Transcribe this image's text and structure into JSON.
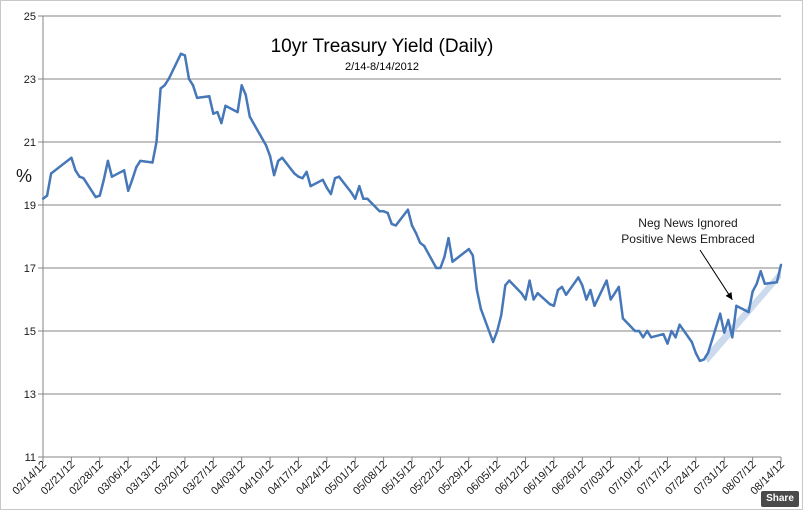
{
  "share_label": "Share",
  "colors": {
    "line": "#4677b8",
    "band": "#c6d6ec",
    "grid": "#868686",
    "axis": "#868686",
    "text": "#1a1a1a"
  },
  "chart_data": {
    "type": "line",
    "title": "10yr Treasury Yield (Daily)",
    "subtitle": "2/14-8/14/2012",
    "ylabel": "%",
    "xlabel": "",
    "ylim": [
      11,
      25
    ],
    "yticks": [
      11,
      13,
      15,
      17,
      19,
      21,
      23,
      25
    ],
    "grid": true,
    "legend": "none",
    "xticks": [
      "02/14/12",
      "02/21/12",
      "02/28/12",
      "03/06/12",
      "03/13/12",
      "03/20/12",
      "03/27/12",
      "04/03/12",
      "04/10/12",
      "04/17/12",
      "04/24/12",
      "05/01/12",
      "05/08/12",
      "05/15/12",
      "05/22/12",
      "05/29/12",
      "06/05/12",
      "06/12/12",
      "06/19/12",
      "06/26/12",
      "07/03/12",
      "07/10/12",
      "07/17/12",
      "07/24/12",
      "07/31/12",
      "08/07/12",
      "08/14/12"
    ],
    "series": [
      {
        "x": [
          "2012-02-14",
          "2012-02-15",
          "2012-02-16",
          "2012-02-17",
          "2012-02-21",
          "2012-02-22",
          "2012-02-23",
          "2012-02-24",
          "2012-02-27",
          "2012-02-28",
          "2012-02-29",
          "2012-03-01",
          "2012-03-02",
          "2012-03-05",
          "2012-03-06",
          "2012-03-07",
          "2012-03-08",
          "2012-03-09",
          "2012-03-12",
          "2012-03-13",
          "2012-03-14",
          "2012-03-15",
          "2012-03-16",
          "2012-03-19",
          "2012-03-20",
          "2012-03-21",
          "2012-03-22",
          "2012-03-23",
          "2012-03-26",
          "2012-03-27",
          "2012-03-28",
          "2012-03-29",
          "2012-03-30",
          "2012-04-02",
          "2012-04-03",
          "2012-04-04",
          "2012-04-05",
          "2012-04-09",
          "2012-04-10",
          "2012-04-11",
          "2012-04-12",
          "2012-04-13",
          "2012-04-16",
          "2012-04-17",
          "2012-04-18",
          "2012-04-19",
          "2012-04-20",
          "2012-04-23",
          "2012-04-24",
          "2012-04-25",
          "2012-04-26",
          "2012-04-27",
          "2012-04-30",
          "2012-05-01",
          "2012-05-02",
          "2012-05-03",
          "2012-05-04",
          "2012-05-07",
          "2012-05-08",
          "2012-05-09",
          "2012-05-10",
          "2012-05-11",
          "2012-05-14",
          "2012-05-15",
          "2012-05-16",
          "2012-05-17",
          "2012-05-18",
          "2012-05-21",
          "2012-05-22",
          "2012-05-23",
          "2012-05-24",
          "2012-05-25",
          "2012-05-29",
          "2012-05-30",
          "2012-05-31",
          "2012-06-01",
          "2012-06-04",
          "2012-06-05",
          "2012-06-06",
          "2012-06-07",
          "2012-06-08",
          "2012-06-11",
          "2012-06-12",
          "2012-06-13",
          "2012-06-14",
          "2012-06-15",
          "2012-06-18",
          "2012-06-19",
          "2012-06-20",
          "2012-06-21",
          "2012-06-22",
          "2012-06-25",
          "2012-06-26",
          "2012-06-27",
          "2012-06-28",
          "2012-06-29",
          "2012-07-02",
          "2012-07-03",
          "2012-07-05",
          "2012-07-06",
          "2012-07-09",
          "2012-07-10",
          "2012-07-11",
          "2012-07-12",
          "2012-07-13",
          "2012-07-16",
          "2012-07-17",
          "2012-07-18",
          "2012-07-19",
          "2012-07-20",
          "2012-07-23",
          "2012-07-24",
          "2012-07-25",
          "2012-07-26",
          "2012-07-27",
          "2012-07-30",
          "2012-07-31",
          "2012-08-01",
          "2012-08-02",
          "2012-08-03",
          "2012-08-06",
          "2012-08-07",
          "2012-08-08",
          "2012-08-09",
          "2012-08-10",
          "2012-08-13",
          "2012-08-14"
        ],
        "values": [
          19.2,
          19.3,
          20.0,
          20.1,
          20.5,
          20.1,
          19.9,
          19.85,
          19.25,
          19.3,
          19.8,
          20.4,
          19.9,
          20.1,
          19.45,
          19.8,
          20.2,
          20.4,
          20.35,
          21.0,
          22.7,
          22.8,
          23.0,
          23.8,
          23.75,
          23.0,
          22.8,
          22.4,
          22.45,
          21.9,
          21.95,
          21.6,
          22.15,
          21.95,
          22.8,
          22.5,
          21.8,
          20.9,
          20.55,
          19.95,
          20.4,
          20.5,
          20.0,
          19.9,
          19.85,
          20.05,
          19.6,
          19.8,
          19.55,
          19.35,
          19.85,
          19.9,
          19.4,
          19.2,
          19.6,
          19.2,
          19.2,
          18.8,
          18.8,
          18.75,
          18.4,
          18.35,
          18.85,
          18.35,
          18.1,
          17.8,
          17.7,
          17.0,
          17.0,
          17.35,
          17.95,
          17.2,
          17.6,
          17.4,
          16.3,
          15.7,
          14.65,
          15.0,
          15.5,
          16.45,
          16.6,
          16.2,
          16.0,
          16.6,
          16.0,
          16.2,
          15.85,
          15.8,
          16.3,
          16.4,
          16.15,
          16.7,
          16.45,
          16.0,
          16.3,
          15.8,
          16.6,
          16.0,
          16.4,
          15.4,
          15.0,
          15.0,
          14.8,
          15.0,
          14.8,
          14.9,
          14.6,
          15.0,
          14.8,
          15.2,
          14.65,
          14.3,
          14.05,
          14.1,
          14.3,
          15.55,
          14.95,
          15.35,
          14.8,
          15.8,
          15.6,
          16.25,
          16.5,
          16.9,
          16.5,
          16.55,
          17.1
        ]
      }
    ],
    "annotations": [
      {
        "text": "Neg News Ignored",
        "lines": [
          "Neg News Ignored",
          "Positive News Embraced"
        ],
        "arrow_to": [
          "2012-08-02",
          15.8
        ]
      }
    ],
    "shaded_trend": {
      "from": [
        "2012-07-26",
        14.3
      ],
      "to": [
        "2012-08-14",
        16.9
      ]
    }
  }
}
